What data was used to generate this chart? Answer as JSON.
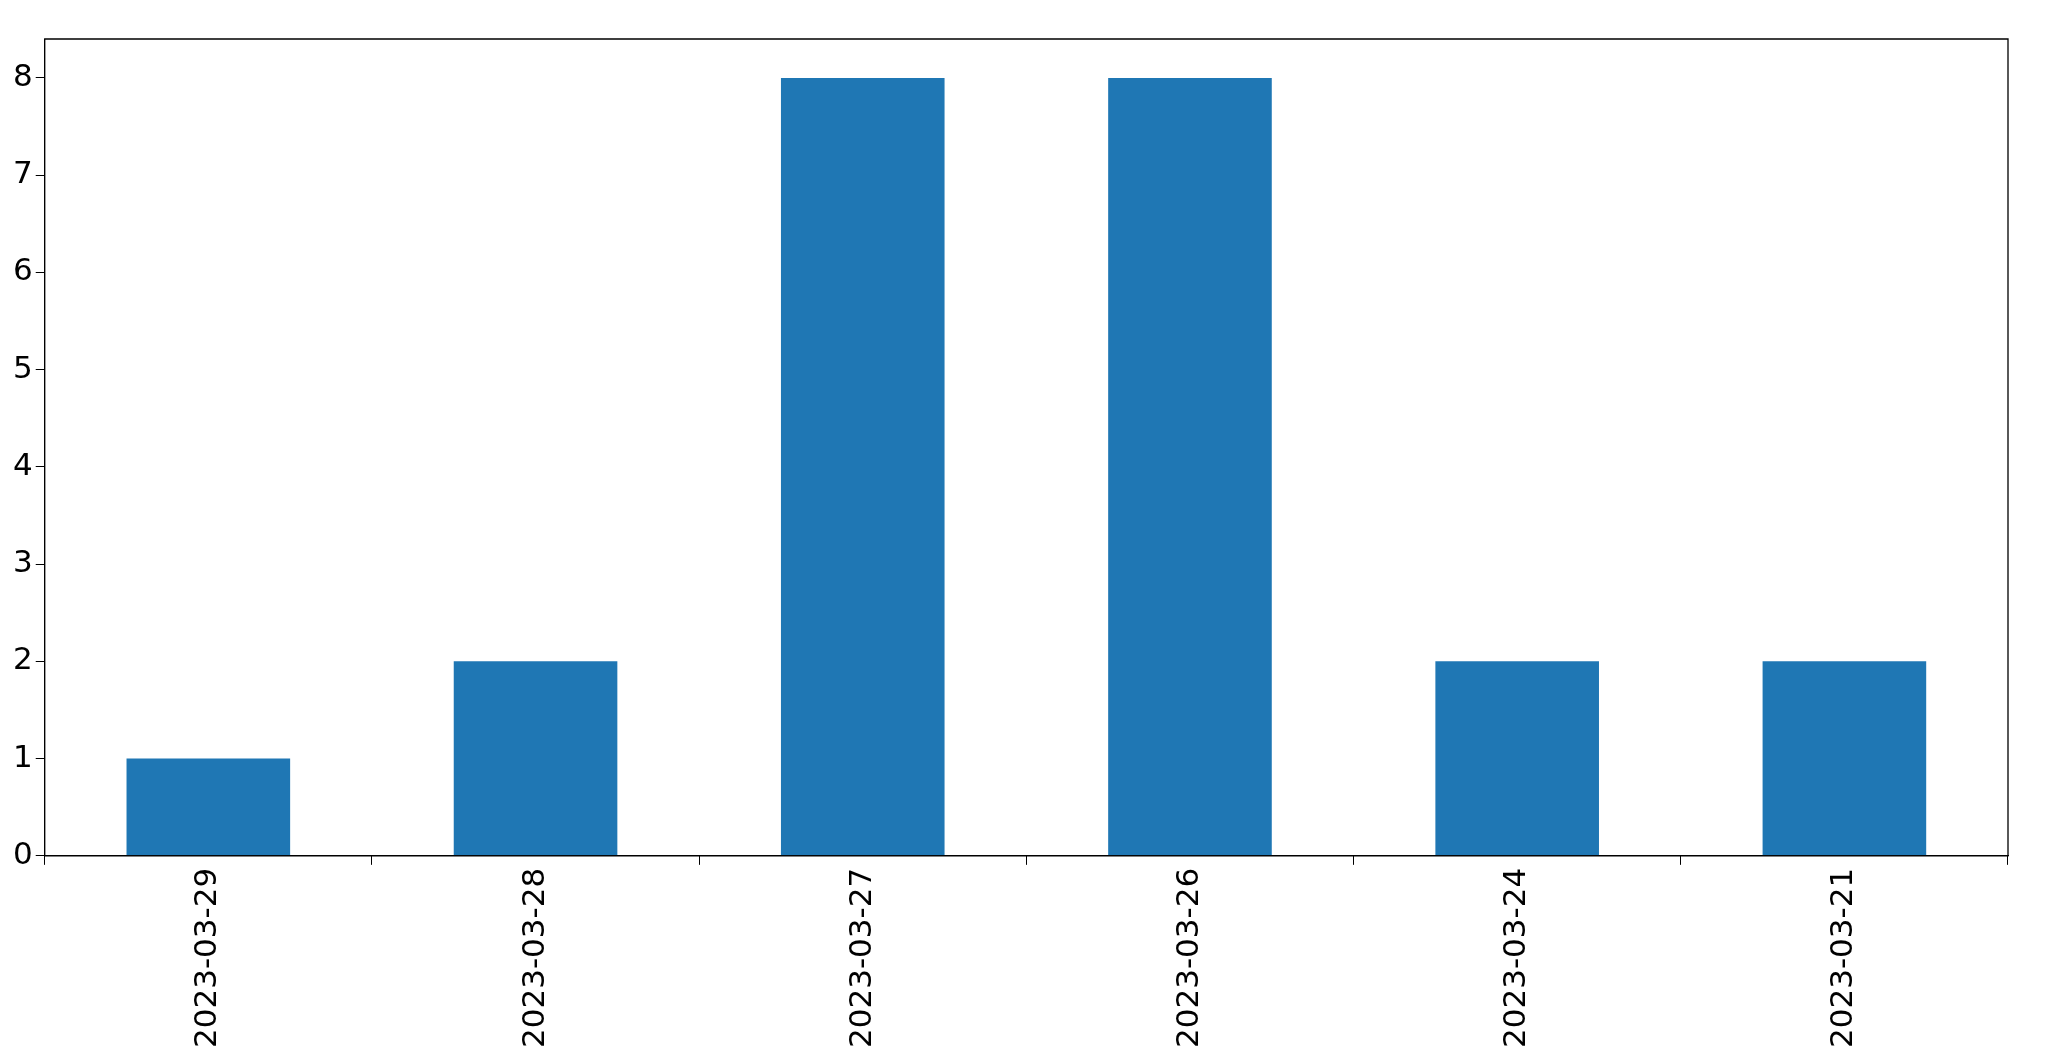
{
  "chart_data": {
    "type": "bar",
    "categories": [
      "2023-03-29",
      "2023-03-28",
      "2023-03-27",
      "2023-03-26",
      "2023-03-24",
      "2023-03-21"
    ],
    "values": [
      1,
      2,
      8,
      8,
      2,
      2
    ],
    "color": "#1f77b4",
    "ylim": [
      0,
      8.4
    ],
    "yticks": [
      0,
      1,
      2,
      3,
      4,
      5,
      6,
      7,
      8
    ],
    "grid": false,
    "legend": false
  }
}
